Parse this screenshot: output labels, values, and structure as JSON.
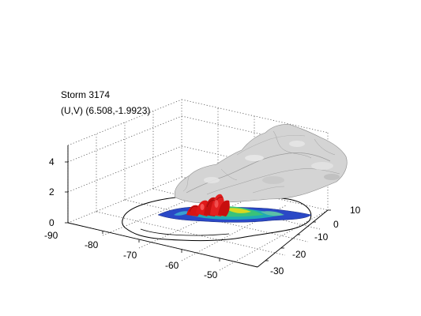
{
  "figure": {
    "title_line_1": "Storm 3174",
    "title_line_2": "(U,V) (6.508,-1.9923)"
  },
  "axes": {
    "x_ticks": [
      "-90",
      "-80",
      "-70",
      "-60",
      "-50"
    ],
    "y_ticks": [
      "10",
      "0",
      "-10",
      "-20",
      "-30"
    ],
    "z_ticks": [
      "4",
      "2",
      "0"
    ]
  },
  "colors": {
    "cloud_surface": "#d9d9d9",
    "cloud_shadow": "#9a9a9a",
    "rain_core": "#dd1010",
    "rain_low": "#2040c0",
    "rain_mid": "#20b0a0",
    "rain_high": "#e0e020"
  },
  "icons": {
    "cloud": "cloud-isosurface",
    "precip": "precipitation-surface"
  }
}
